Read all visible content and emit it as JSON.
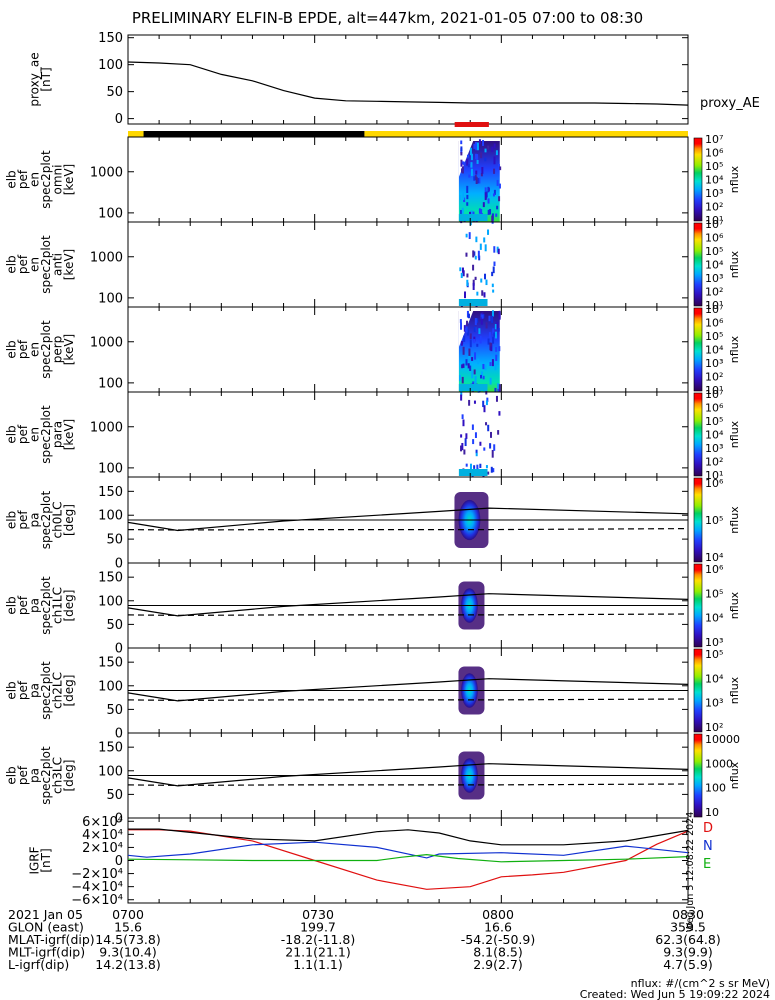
{
  "title": "PRELIMINARY ELFIN-B EPDE, alt=447km, 2021-01-05 07:00 to 08:30",
  "panels": {
    "ae": {
      "ylabel": [
        "proxy_ae",
        "[nT]"
      ],
      "yticks": [
        "150",
        "100",
        "50",
        "0"
      ],
      "legend": "proxy_AE"
    },
    "spec_omni": {
      "ylabel": [
        "elb",
        "pef",
        "en",
        "spec2plot",
        "omni",
        "[keV]"
      ],
      "yticks": [
        "1000",
        "100"
      ]
    },
    "spec_anti": {
      "ylabel": [
        "elb",
        "pef",
        "en",
        "spec2plot",
        "anti",
        "[keV]"
      ],
      "yticks": [
        "1000",
        "100"
      ]
    },
    "spec_perp": {
      "ylabel": [
        "elb",
        "pef",
        "en",
        "spec2plot",
        "perp",
        "[keV]"
      ],
      "yticks": [
        "1000",
        "100"
      ]
    },
    "spec_para": {
      "ylabel": [
        "elb",
        "pef",
        "en",
        "spec2plot",
        "para",
        "[keV]"
      ],
      "yticks": [
        "1000",
        "100"
      ]
    },
    "pa_ch0": {
      "ylabel": [
        "elb",
        "pef",
        "pa",
        "spec2plot",
        "ch0LC",
        "[deg]"
      ],
      "yticks": [
        "150",
        "100",
        "50",
        "0"
      ]
    },
    "pa_ch1": {
      "ylabel": [
        "elb",
        "pef",
        "pa",
        "spec2plot",
        "ch1LC",
        "[deg]"
      ],
      "yticks": [
        "150",
        "100",
        "50",
        "0"
      ]
    },
    "pa_ch2": {
      "ylabel": [
        "elb",
        "pef",
        "pa",
        "spec2plot",
        "ch2LC",
        "[deg]"
      ],
      "yticks": [
        "150",
        "100",
        "50",
        "0"
      ]
    },
    "pa_ch3": {
      "ylabel": [
        "elb",
        "pef",
        "pa",
        "spec2plot",
        "ch3LC",
        "[deg]"
      ],
      "yticks": [
        "150",
        "100",
        "50",
        "0"
      ]
    },
    "igrf": {
      "ylabel": [
        "IGRF",
        "[nT]"
      ],
      "yticks": [
        "6×10⁴",
        "4×10⁴",
        "2×10⁴",
        "0",
        "−2×10⁴",
        "−4×10⁴",
        "−6×10⁴"
      ],
      "legend": [
        "D",
        "N",
        "E"
      ],
      "legend_colors": [
        "#e01010",
        "#1030d0",
        "#10b010"
      ]
    }
  },
  "colorbars": {
    "spec": [
      "10⁷",
      "10⁶",
      "10⁵",
      "10⁴",
      "10³",
      "10²",
      "10¹"
    ],
    "ch0": [
      "10⁶",
      "10⁵",
      "10⁴"
    ],
    "ch1": [
      "10⁶",
      "10⁵",
      "10⁴",
      "10³"
    ],
    "ch2": [
      "10⁵",
      "10⁴",
      "10³",
      "10²"
    ],
    "ch3": [
      "10000",
      "1000",
      "100",
      "10"
    ],
    "unit": "nflux"
  },
  "footer": {
    "rows": [
      [
        "2021 Jan 05",
        "0700",
        "0730",
        "0800",
        "0830"
      ],
      [
        "GLON (east)",
        "15.6",
        "199.7",
        "16.6",
        "359.5"
      ],
      [
        "MLAT-igrf(dip)",
        "14.5(73.8)",
        "-18.2(-11.8)",
        "-54.2(-50.9)",
        "62.3(64.8)"
      ],
      [
        "MLT-igrf(dip)",
        "9.3(10.4)",
        "21.1(21.1)",
        "8.1(8.5)",
        "9.3(9.9)"
      ],
      [
        "L-igrf(dip)",
        "14.2(13.8)",
        "1.1(1.1)",
        "2.9(2.7)",
        "4.7(5.9)"
      ]
    ],
    "units_note": "nflux: #/(cm^2 s sr MeV)",
    "created": "Created: Wed Jun  5 19:09:22 2024",
    "side_stamp": "Wed Jun  5 12:08:22 2024"
  },
  "chart_data": {
    "type": "line",
    "x_range": [
      "07:00",
      "08:30"
    ],
    "x_ticks": [
      "0700",
      "0730",
      "0800",
      "0830"
    ],
    "proxy_ae": {
      "x_min": [
        0,
        5,
        10,
        15,
        20,
        25,
        30,
        35,
        40,
        45,
        50,
        55,
        60,
        65,
        70,
        75,
        80,
        85,
        90
      ],
      "y": [
        105,
        103,
        100,
        82,
        70,
        52,
        38,
        33,
        32,
        31,
        30,
        29,
        29,
        29,
        29,
        29,
        28,
        27,
        25
      ],
      "ylim": [
        -10,
        155
      ]
    },
    "spectrogram_energy": {
      "ylim_keV": [
        60,
        7000
      ],
      "burst_minutes": [
        53.5,
        57.5
      ],
      "energy_range_keV": [
        63,
        7000
      ]
    },
    "pitch_angle": {
      "ylim": [
        0,
        180
      ],
      "solid_line": {
        "x_min": [
          0,
          8,
          25,
          50,
          58,
          90
        ],
        "y": [
          85,
          68,
          88,
          108,
          115,
          103
        ]
      },
      "dashed_line": {
        "x_min": [
          0,
          8,
          25,
          50,
          58,
          90
        ],
        "y": [
          70,
          69,
          70,
          70,
          70,
          72
        ]
      },
      "horizontal_line": 90
    },
    "igrf": {
      "ylim": [
        -65000,
        65000
      ],
      "series": [
        {
          "name": "D",
          "color": "#e01010",
          "x_min": [
            0,
            5,
            10,
            20,
            30,
            40,
            48,
            55,
            60,
            65,
            70,
            80,
            85,
            90
          ],
          "y": [
            47000,
            47000,
            45000,
            30000,
            0,
            -30000,
            -44000,
            -40000,
            -25000,
            -22000,
            -18000,
            0,
            25000,
            45000
          ]
        },
        {
          "name": "N",
          "color": "#1030d0",
          "x_min": [
            0,
            3,
            10,
            20,
            30,
            40,
            46,
            48,
            50,
            60,
            70,
            80,
            90
          ],
          "y": [
            8000,
            5000,
            10000,
            24000,
            28000,
            20000,
            8000,
            4000,
            10000,
            12000,
            8000,
            22000,
            12000
          ]
        },
        {
          "name": "E",
          "color": "#10b010",
          "x_min": [
            0,
            10,
            20,
            30,
            40,
            44,
            48,
            53,
            60,
            70,
            80,
            90
          ],
          "y": [
            2000,
            1000,
            0,
            0,
            0,
            5000,
            9000,
            3000,
            -2000,
            0,
            2000,
            6000
          ]
        },
        {
          "name": "total",
          "color": "#000000",
          "x_min": [
            0,
            5,
            10,
            20,
            30,
            40,
            45,
            50,
            55,
            60,
            70,
            80,
            90
          ],
          "y": [
            48000,
            48000,
            43000,
            33000,
            30000,
            44000,
            47000,
            42000,
            30000,
            24000,
            24000,
            30000,
            46000
          ]
        }
      ]
    },
    "status_bar": [
      {
        "from_min": 0,
        "to_min": 2.5,
        "color": "#ffd800"
      },
      {
        "from_min": 2.5,
        "to_min": 38,
        "color": "#000000"
      },
      {
        "from_min": 38,
        "to_min": 90,
        "color": "#ffd800"
      }
    ],
    "science_zone_bar": {
      "from_min": 52.5,
      "to_min": 58,
      "color": "#e01010"
    }
  }
}
